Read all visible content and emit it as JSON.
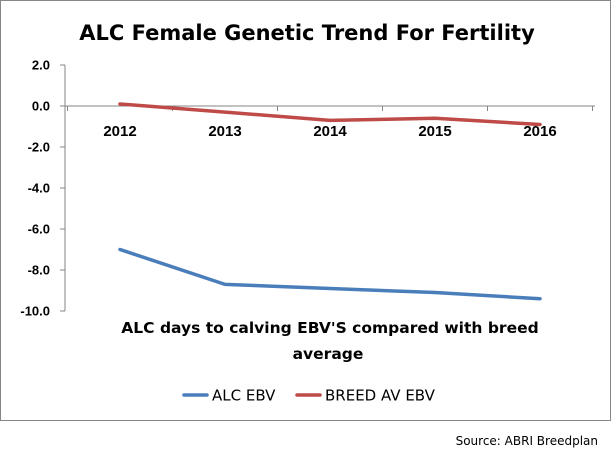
{
  "chart_data": {
    "type": "line",
    "title": "ALC  Female Genetic Trend For Fertility",
    "categories": [
      "2012",
      "2013",
      "2014",
      "2015",
      "2016"
    ],
    "series": [
      {
        "name": "ALC EBV",
        "values": [
          -7.0,
          -8.7,
          -8.9,
          -9.1,
          -9.4
        ],
        "color": "#4a7ebb"
      },
      {
        "name": "BREED AV EBV",
        "values": [
          0.1,
          -0.3,
          -0.7,
          -0.6,
          -0.9
        ],
        "color": "#be4b48"
      }
    ],
    "ylim": [
      -10.0,
      2.0
    ],
    "yticks": [
      "2.0",
      "0.0",
      "-2.0",
      "-4.0",
      "-6.0",
      "-8.0",
      "-10.0"
    ],
    "annotation": [
      "ALC  days to calving EBV'S compared with breed",
      "average"
    ],
    "legend_position": "bottom",
    "grid": false,
    "xlabel": "",
    "ylabel": ""
  },
  "source": "Source: ABRI Breedplan"
}
